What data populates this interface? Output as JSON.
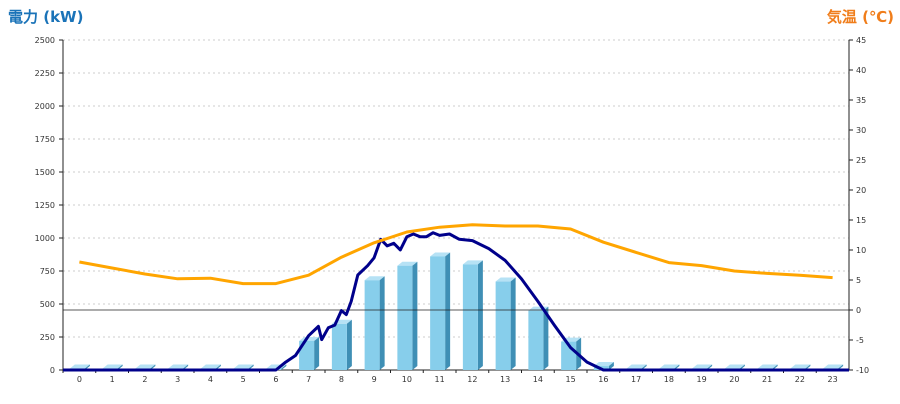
{
  "chart_data": {
    "type": "bar",
    "left_axis_title": "電力 (kW)",
    "right_axis_title": "気温 (℃)",
    "categories": [
      "0",
      "1",
      "2",
      "3",
      "4",
      "5",
      "6",
      "7",
      "8",
      "9",
      "10",
      "11",
      "12",
      "13",
      "14",
      "15",
      "16",
      "17",
      "18",
      "19",
      "20",
      "21",
      "22",
      "23"
    ],
    "y_left": {
      "min": 0,
      "max": 2500,
      "ticks": [
        0,
        250,
        500,
        750,
        1000,
        1250,
        1500,
        1750,
        2000,
        2250,
        2500
      ]
    },
    "y_right": {
      "min": -10,
      "max": 45,
      "ticks": [
        -10,
        -5,
        0,
        5,
        10,
        15,
        20,
        25,
        30,
        35,
        40,
        45
      ]
    },
    "grid": true,
    "series": [
      {
        "kind": "bar",
        "axis": "left",
        "color": "#87ceeb",
        "values": [
          0,
          0,
          0,
          0,
          0,
          0,
          0,
          220,
          350,
          680,
          790,
          860,
          800,
          670,
          450,
          215,
          30,
          0,
          0,
          0,
          0,
          0,
          0,
          0
        ]
      },
      {
        "kind": "line",
        "axis": "left",
        "color": "#00008b",
        "points": [
          [
            -0.5,
            0
          ],
          [
            6,
            0
          ],
          [
            6.3,
            60
          ],
          [
            6.6,
            110
          ],
          [
            7,
            260
          ],
          [
            7.3,
            330
          ],
          [
            7.4,
            230
          ],
          [
            7.6,
            320
          ],
          [
            7.8,
            340
          ],
          [
            8,
            450
          ],
          [
            8.15,
            420
          ],
          [
            8.3,
            520
          ],
          [
            8.5,
            720
          ],
          [
            8.8,
            790
          ],
          [
            9,
            850
          ],
          [
            9.2,
            990
          ],
          [
            9.4,
            940
          ],
          [
            9.6,
            960
          ],
          [
            9.8,
            910
          ],
          [
            10,
            1010
          ],
          [
            10.2,
            1030
          ],
          [
            10.4,
            1010
          ],
          [
            10.6,
            1010
          ],
          [
            10.8,
            1040
          ],
          [
            11,
            1020
          ],
          [
            11.3,
            1030
          ],
          [
            11.6,
            990
          ],
          [
            12,
            980
          ],
          [
            12.5,
            920
          ],
          [
            13,
            830
          ],
          [
            13.5,
            690
          ],
          [
            14,
            520
          ],
          [
            14.5,
            340
          ],
          [
            15,
            170
          ],
          [
            15.5,
            60
          ],
          [
            16,
            0
          ],
          [
            23.5,
            0
          ]
        ]
      },
      {
        "kind": "line",
        "axis": "right",
        "color": "#ffa500",
        "x": [
          0,
          1,
          2,
          3,
          4,
          5,
          6,
          7,
          8,
          9,
          10,
          11,
          12,
          13,
          14,
          15,
          16,
          17,
          18,
          19,
          20,
          21,
          22,
          23
        ],
        "values": [
          8,
          7,
          6,
          5.2,
          5.3,
          4.4,
          4.4,
          5.8,
          8.8,
          11.2,
          13,
          13.8,
          14.2,
          14,
          14,
          13.5,
          11.3,
          9.6,
          7.9,
          7.4,
          6.5,
          6.1,
          5.8,
          5.4
        ]
      }
    ]
  }
}
